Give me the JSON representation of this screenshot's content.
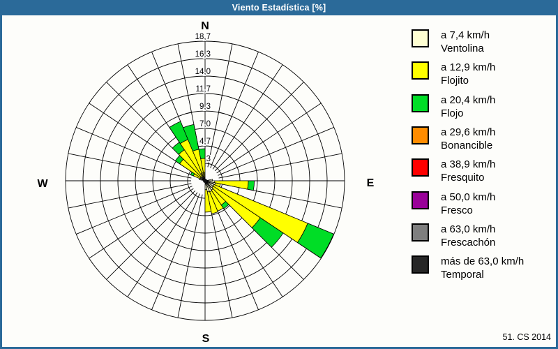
{
  "window": {
    "title": "Viento Estadística [%]",
    "title_bar_color": "#2b6a99",
    "credit": "51. CS 2014"
  },
  "compass": {
    "n": "N",
    "e": "E",
    "s": "S",
    "w": "W"
  },
  "legend": {
    "items": [
      {
        "key": "ventolina",
        "color": "#ffffd2",
        "speed": "a 7,4 km/h",
        "name": "Ventolina"
      },
      {
        "key": "flojito",
        "color": "#ffff00",
        "speed": "a 12,9 km/h",
        "name": "Flojito"
      },
      {
        "key": "flojo",
        "color": "#00dd26",
        "speed": "a 20,4 km/h",
        "name": "Flojo"
      },
      {
        "key": "bonancible",
        "color": "#ff8c00",
        "speed": "a 29,6 km/h",
        "name": "Bonancible"
      },
      {
        "key": "fresquito",
        "color": "#ff0000",
        "speed": "a 38,9 km/h",
        "name": "Fresquito"
      },
      {
        "key": "fresco",
        "color": "#990099",
        "speed": "a 50,0 km/h",
        "name": "Fresco"
      },
      {
        "key": "frescachon",
        "color": "#7f7f7f",
        "speed": "a 63,0 km/h",
        "name": "Frescachón"
      },
      {
        "key": "temporal",
        "color": "#262626",
        "speed": "más de 63,0 km/h",
        "name": "Temporal"
      }
    ]
  },
  "chart_data": {
    "type": "rose (polar stacked bar, wind rose)",
    "title": "Viento Estadística [%]",
    "units": "%",
    "sector_width_deg": 11.25,
    "radial_ticks": [
      2.3,
      4.7,
      7.0,
      9.3,
      11.7,
      14.0,
      16.3,
      18.7
    ],
    "radial_tick_labels": [
      "2,3",
      "4,7",
      "7,0",
      "9,3",
      "11,7",
      "14,0",
      "16,3",
      "18,7"
    ],
    "rlim": [
      0,
      18.7
    ],
    "grid": true,
    "legend_position": "right",
    "band_order": [
      "ventolina",
      "flojito",
      "flojo"
    ],
    "bands_are_cumulative": true,
    "petals": [
      {
        "dir": 84.4,
        "ventolina": 1.0,
        "flojito": null,
        "flojo": null
      },
      {
        "dir": 95.6,
        "ventolina": 1.3,
        "flojito": 5.8,
        "flojo": 6.6
      },
      {
        "dir": 106.9,
        "ventolina": 1.4,
        "flojito": 2.1,
        "flojo": null
      },
      {
        "dir": 118.1,
        "ventolina": 1.3,
        "flojito": 14.9,
        "flojo": 18.65
      },
      {
        "dir": 129.4,
        "ventolina": 1.3,
        "flojito": 8.9,
        "flojo": 12.6
      },
      {
        "dir": 140.6,
        "ventolina": 1.5,
        "flojito": 3.9,
        "flojo": 4.5
      },
      {
        "dir": 151.9,
        "ventolina": 1.6,
        "flojito": 4.4,
        "flojo": null
      },
      {
        "dir": 163.1,
        "ventolina": 1.5,
        "flojito": 4.5,
        "flojo": null
      },
      {
        "dir": 174.4,
        "ventolina": 1.2,
        "flojito": 4.2,
        "flojo": null
      },
      {
        "dir": 286.9,
        "ventolina": 0.8,
        "flojito": null,
        "flojo": null
      },
      {
        "dir": 298.1,
        "ventolina": 0.7,
        "flojito": 1.7,
        "flojo": 2.1
      },
      {
        "dir": 309.4,
        "ventolina": 0.7,
        "flojito": 4.1,
        "flojo": 4.8
      },
      {
        "dir": 320.6,
        "ventolina": 0.6,
        "flojito": 5.0,
        "flojo": 6.2
      },
      {
        "dir": 331.9,
        "ventolina": 0.6,
        "flojito": 6.0,
        "flojo": 8.6
      },
      {
        "dir": 343.1,
        "ventolina": 0.6,
        "flojito": 4.3,
        "flojo": 7.7
      },
      {
        "dir": 354.4,
        "ventolina": 0.5,
        "flojito": 3.0,
        "flojo": 4.3
      }
    ]
  }
}
